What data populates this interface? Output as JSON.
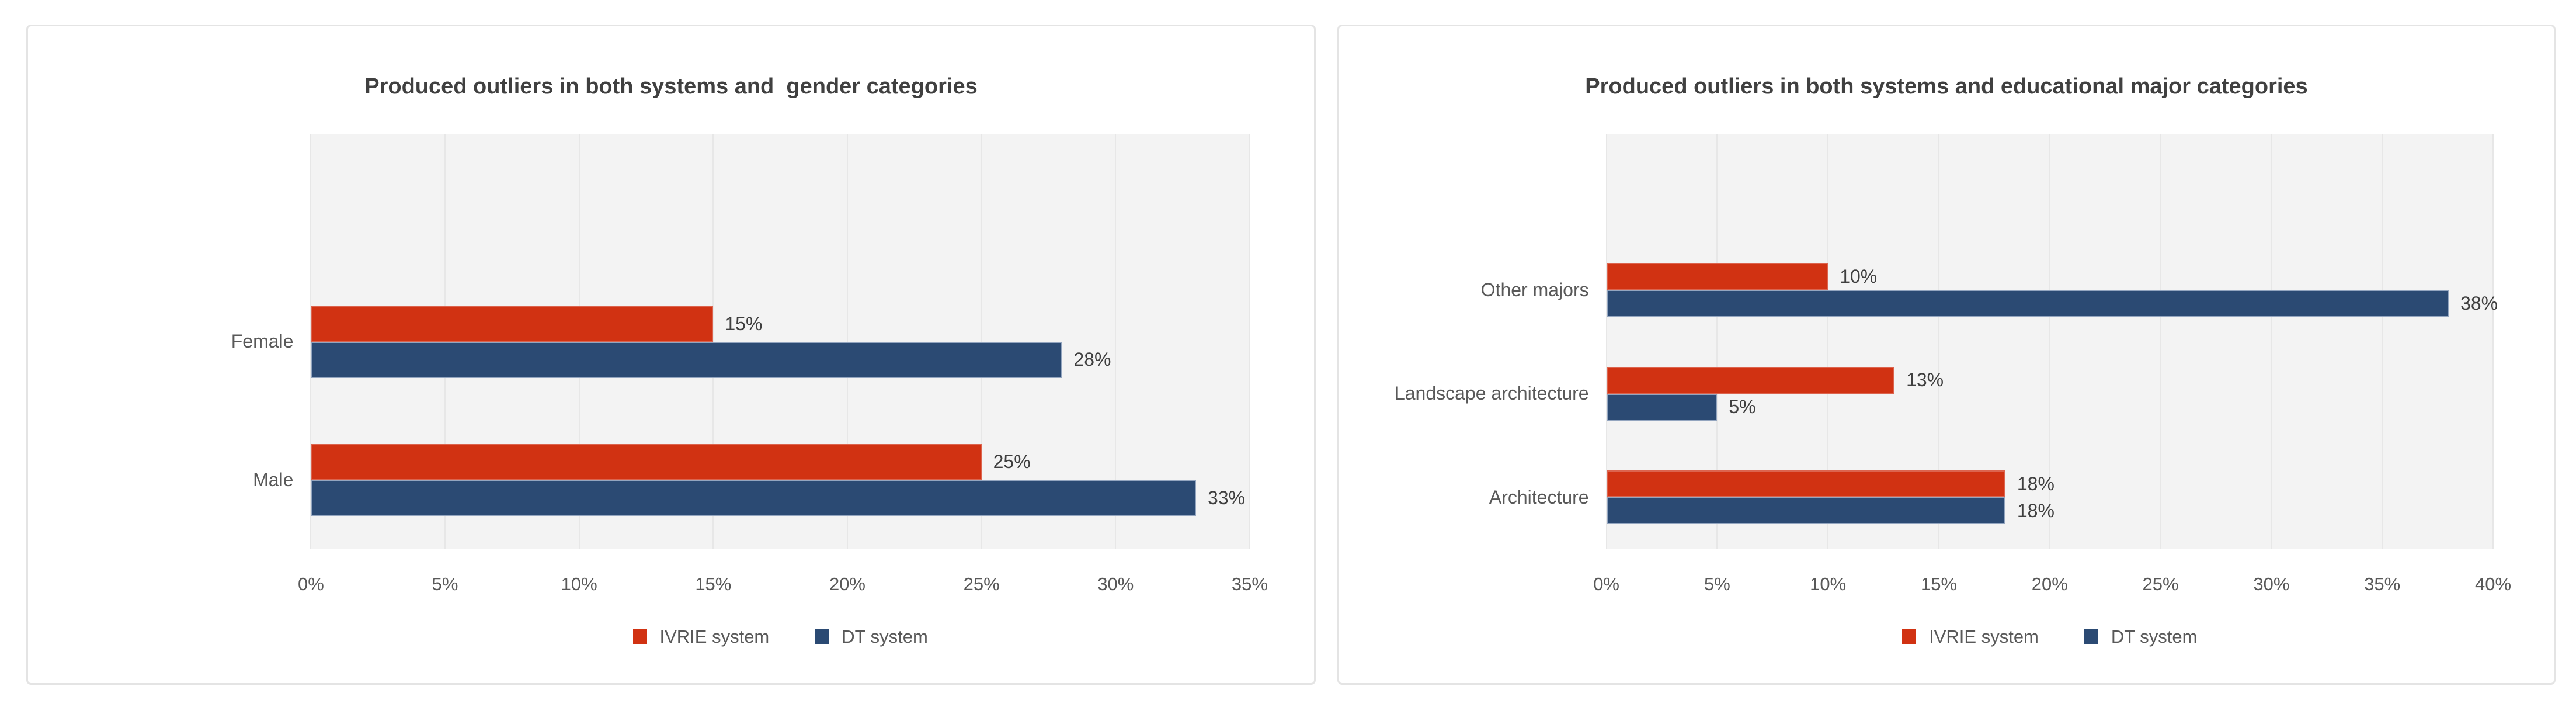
{
  "page": {
    "background": "#FFFFFF"
  },
  "colors": {
    "panel_border": "#E4E4E4",
    "plot_background": "#F3F3F3",
    "gridline": "#E7E7E7",
    "title_text": "#404040",
    "axis_text": "#595959",
    "value_label_text": "#3F3F3F",
    "ivrie_red": "#D13212",
    "dt_blue": "#2B4A73"
  },
  "chart_data": [
    {
      "type": "bar",
      "orientation": "horizontal",
      "title": "Produced outliers in both systems and  gender categories",
      "categories": [
        "Female",
        "Male"
      ],
      "series": [
        {
          "name": "IVRIE system",
          "color": "#D13212",
          "edge": "#DC644E",
          "values": [
            15,
            25
          ],
          "labels": [
            "15%",
            "25%"
          ]
        },
        {
          "name": "DT system",
          "color": "#2B4A73",
          "edge": "#93A5BF",
          "values": [
            28,
            33
          ],
          "labels": [
            "28%",
            "33%"
          ]
        }
      ],
      "xlabel": "",
      "ylabel": "",
      "xlim": [
        0,
        35
      ],
      "tick_step": 5,
      "tick_labels": [
        "0%",
        "5%",
        "10%",
        "15%",
        "20%",
        "25%",
        "30%",
        "35%"
      ],
      "grid": true,
      "legend_position": "bottom",
      "layout_hints": {
        "empty_top_bands": 1,
        "bar_band_fraction": 0.26
      }
    },
    {
      "type": "bar",
      "orientation": "horizontal",
      "title": "Produced outliers in both systems and educational major categories",
      "categories": [
        "Other majors",
        "Landscape architecture",
        "Architecture"
      ],
      "series": [
        {
          "name": "IVRIE system",
          "color": "#D13212",
          "edge": "#DC644E",
          "values": [
            10,
            13,
            18
          ],
          "labels": [
            "10%",
            "13%",
            "18%"
          ]
        },
        {
          "name": "DT system",
          "color": "#2B4A73",
          "edge": "#93A5BF",
          "values": [
            38,
            5,
            18
          ],
          "labels": [
            "38%",
            "5%",
            "18%"
          ]
        }
      ],
      "xlabel": "",
      "ylabel": "",
      "xlim": [
        0,
        40
      ],
      "tick_step": 5,
      "tick_labels": [
        "0%",
        "5%",
        "10%",
        "15%",
        "20%",
        "25%",
        "30%",
        "35%",
        "40%"
      ],
      "grid": true,
      "legend_position": "bottom",
      "layout_hints": {
        "empty_top_bands": 1,
        "bar_band_fraction": 0.26
      }
    }
  ]
}
